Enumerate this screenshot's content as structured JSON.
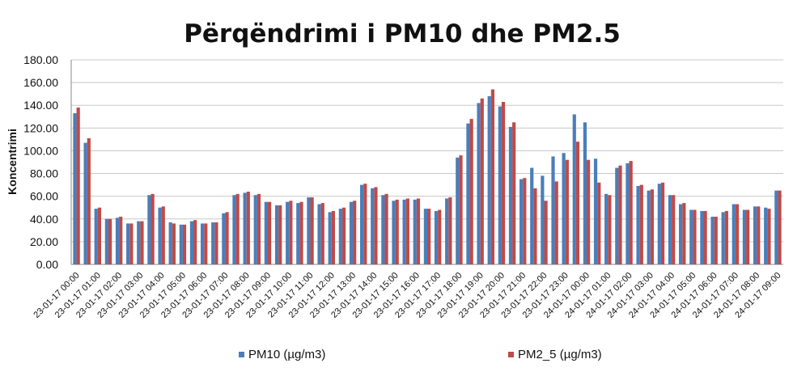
{
  "chart_data": {
    "type": "bar",
    "title": "Përqëndrimi i PM10 dhe PM2.5",
    "xlabel": "",
    "ylabel": "Koncentrimi",
    "ylim": [
      0,
      180
    ],
    "yticks": [
      "0.00",
      "20.00",
      "40.00",
      "60.00",
      "80.00",
      "100.00",
      "120.00",
      "140.00",
      "160.00",
      "180.00"
    ],
    "grid": true,
    "legend_position": "bottom",
    "categories": [
      "23-01-17 00:00",
      "",
      "23-01-17 01:00",
      "",
      "23-01-17 02:00",
      "",
      "23-01-17 03:00",
      "",
      "23-01-17 04:00",
      "",
      "23-01-17 05:00",
      "",
      "23-01-17 06:00",
      "",
      "23-01-17 07:00",
      "",
      "23-01-17 08:00",
      "",
      "23-01-17 09:00",
      "",
      "23-01-17 10:00",
      "",
      "23-01-17 11:00",
      "",
      "23-01-17 12:00",
      "",
      "23-01-17 13:00",
      "",
      "23-01-17 14:00",
      "",
      "23-01-17 15:00",
      "",
      "23-01-17 16:00",
      "",
      "23-01-17 17:00",
      "",
      "23-01-17 18:00",
      "",
      "23-01-17 19:00",
      "",
      "23-01-17 20:00",
      "",
      "23-01-17 21:00",
      "",
      "23-01-17 22:00",
      "",
      "23-01-17 23:00",
      "",
      "24-01-17 00:00",
      "",
      "24-01-17 01:00",
      "",
      "24-01-17 02:00",
      "",
      "24-01-17 03:00",
      "",
      "24-01-17 04:00",
      "",
      "24-01-17 05:00",
      "",
      "24-01-17 06:00",
      "",
      "24-01-17 07:00",
      "",
      "24-01-17 08:00",
      "",
      "24-01-17 09:00"
    ],
    "series": [
      {
        "name": "PM10 (µg/m3)",
        "color": "#4a7ebb",
        "values": [
          133,
          107,
          49,
          40,
          41,
          36,
          38,
          61,
          50,
          37,
          35,
          38,
          36,
          37,
          45,
          61,
          63,
          61,
          55,
          52,
          55,
          54,
          59,
          53,
          46,
          49,
          55,
          70,
          67,
          61,
          56,
          57,
          57,
          49,
          47,
          58,
          94,
          124,
          142,
          148,
          139,
          121,
          75,
          85,
          78,
          95,
          98,
          132,
          125,
          93,
          62,
          85,
          89,
          69,
          65,
          71,
          61,
          53,
          48,
          47,
          42,
          46,
          53,
          48,
          51,
          50,
          65
        ],
        "values_extra": [
          118,
          110,
          142,
          148,
          135,
          120
        ]
      },
      {
        "name": "PM2_5 (µg/m3)",
        "color": "#be4b48",
        "values": [
          138,
          111,
          50,
          40,
          42,
          36,
          38,
          62,
          51,
          36,
          35,
          39,
          36,
          37,
          46,
          62,
          64,
          62,
          55,
          52,
          56,
          55,
          59,
          54,
          47,
          50,
          56,
          71,
          68,
          62,
          57,
          58,
          58,
          49,
          48,
          59,
          96,
          128,
          146,
          154,
          143,
          125,
          76,
          67,
          56,
          73,
          92,
          108,
          92,
          72,
          61,
          87,
          91,
          70,
          66,
          72,
          61,
          54,
          48,
          47,
          42,
          47,
          53,
          48,
          51,
          49,
          65
        ]
      }
    ]
  }
}
